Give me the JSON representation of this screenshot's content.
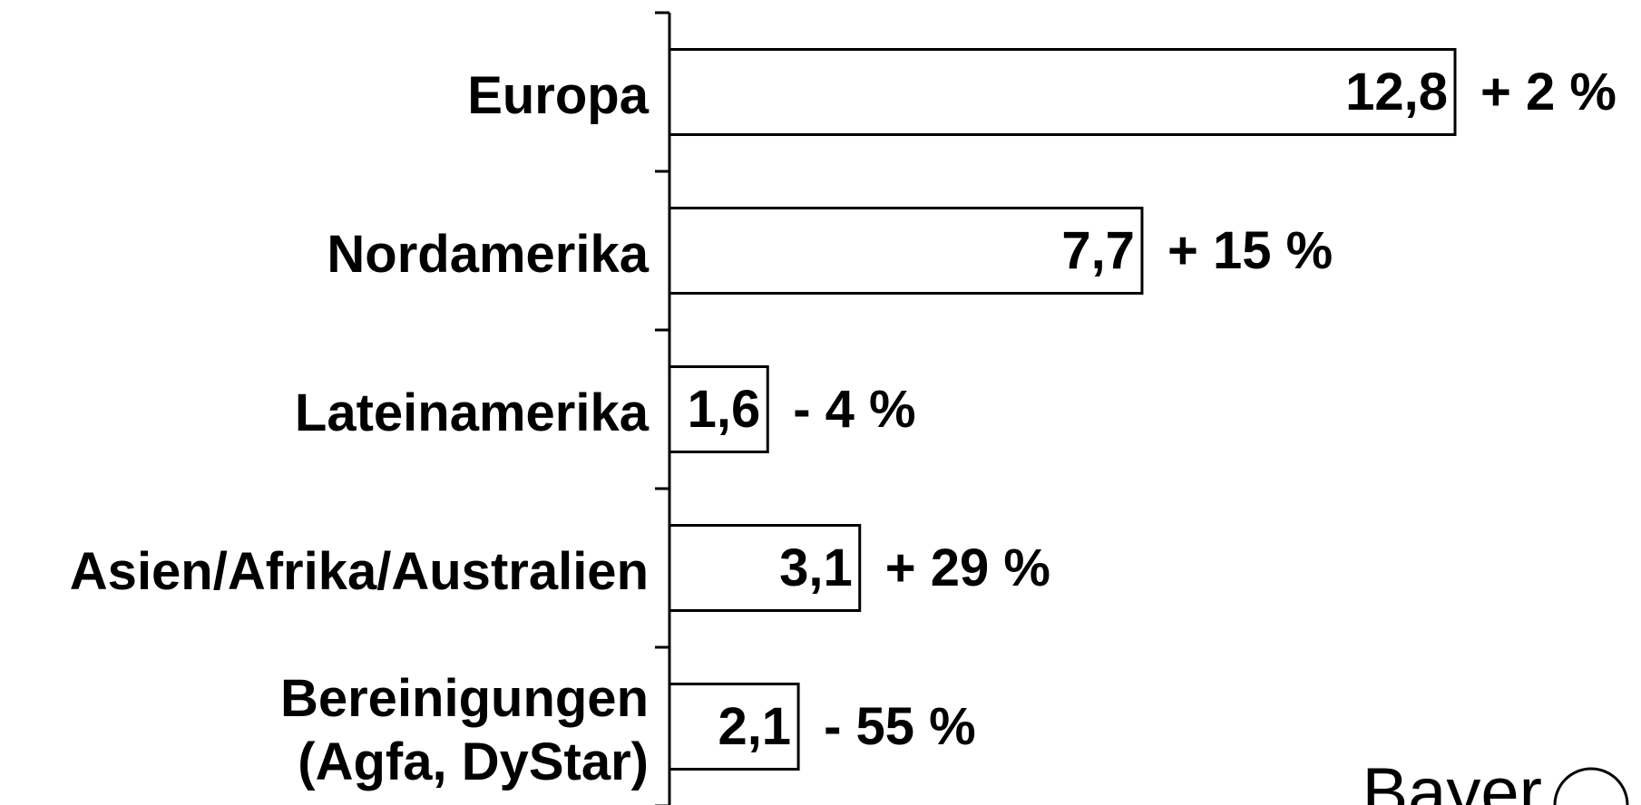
{
  "chart_data": {
    "type": "bar",
    "orientation": "horizontal",
    "categories": [
      "Europa",
      "Nordamerika",
      "Lateinamerika",
      "Asien/Afrika/Australien",
      "Bereinigungen\n(Agfa, DyStar)"
    ],
    "values": [
      12.8,
      7.7,
      1.6,
      3.1,
      2.1
    ],
    "value_labels": [
      "12,8",
      "7,7",
      "1,6",
      "3,1",
      "2,1"
    ],
    "annotations": [
      "+ 2 %",
      "+ 15 %",
      "- 4 %",
      "+ 29 %",
      "- 55 %"
    ],
    "color": "#ffffff"
  },
  "logo": "Bayer"
}
